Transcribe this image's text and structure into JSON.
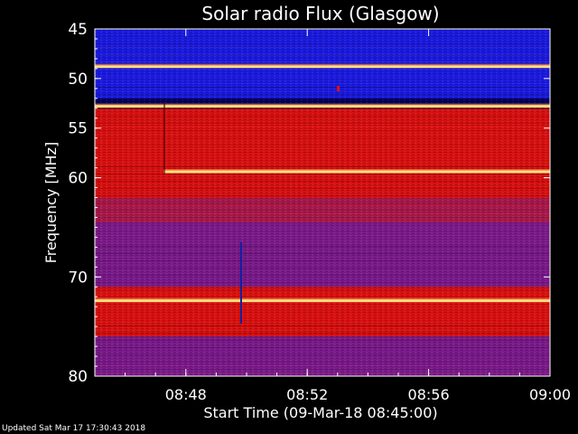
{
  "chart_data": {
    "type": "heatmap",
    "title": "Solar radio Flux (Glasgow)",
    "ylabel": "Frequency [MHz]",
    "xlabel": "Start Time (09-Mar-18 08:45:00)",
    "y_axis": {
      "min": 45,
      "max": 80,
      "inverted": true,
      "ticks": [
        "45",
        "50",
        "55",
        "60",
        "70",
        "80"
      ]
    },
    "x_axis": {
      "start": "08:45",
      "end": "09:00",
      "ticks": [
        "08:48",
        "08:52",
        "08:56",
        "09:00"
      ]
    },
    "colors": {
      "background_band": "#1a1ae0",
      "dark_band": "#000060",
      "red_band": "#d81010",
      "purple_band": "#7a1a8a",
      "hot_line": "#ffe080"
    },
    "bright_lines_mhz": [
      48.8,
      52.8,
      59.4,
      72.4
    ],
    "regions": [
      {
        "from_mhz": 45.0,
        "to_mhz": 48.5,
        "kind": "blue"
      },
      {
        "from_mhz": 48.5,
        "to_mhz": 52.0,
        "kind": "blue"
      },
      {
        "from_mhz": 52.0,
        "to_mhz": 53.0,
        "kind": "dark"
      },
      {
        "from_mhz": 53.0,
        "to_mhz": 62.0,
        "kind": "red"
      },
      {
        "from_mhz": 62.0,
        "to_mhz": 64.5,
        "kind": "red-purple"
      },
      {
        "from_mhz": 64.5,
        "to_mhz": 71.0,
        "kind": "purple"
      },
      {
        "from_mhz": 71.0,
        "to_mhz": 76.0,
        "kind": "red"
      },
      {
        "from_mhz": 76.0,
        "to_mhz": 80.0,
        "kind": "purple"
      }
    ]
  },
  "footer": "Updated Sat Mar 17 17:30:43 2018"
}
